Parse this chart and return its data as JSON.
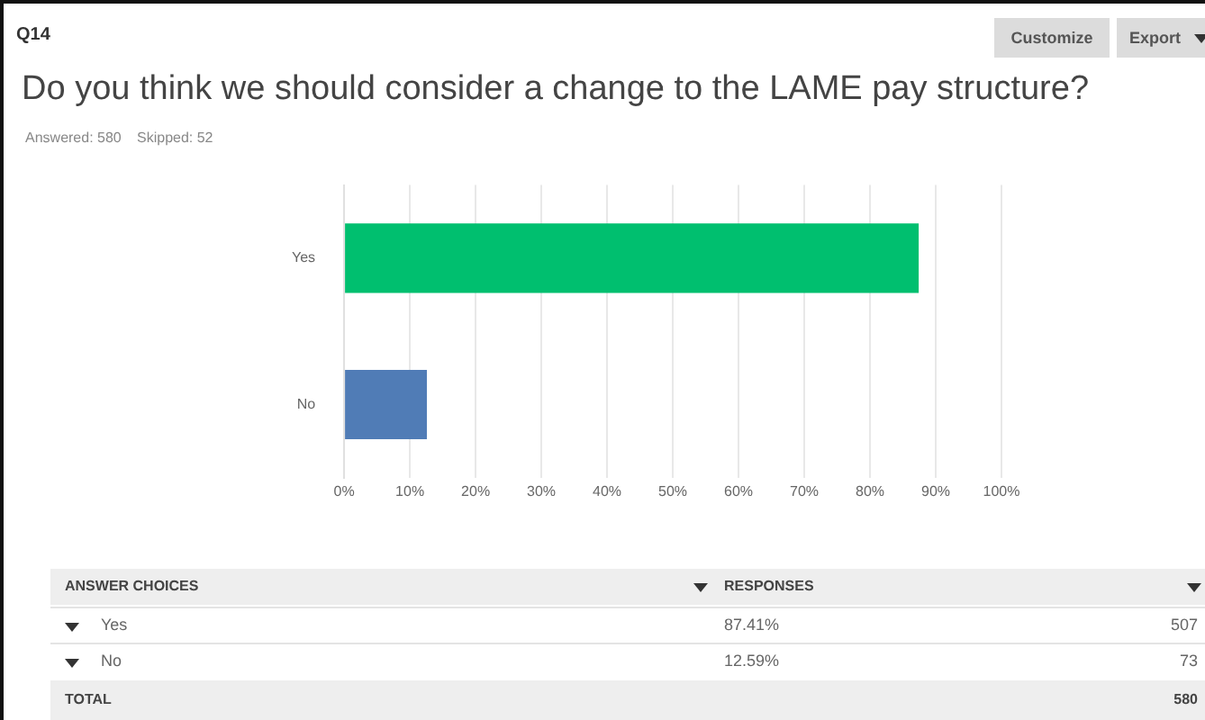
{
  "chart_data": {
    "type": "bar",
    "orientation": "horizontal",
    "title": "Do you think we should consider a change to the LAME pay structure?",
    "categories": [
      "Yes",
      "No"
    ],
    "values": [
      87.41,
      12.59
    ],
    "colors": [
      "#00bf6f",
      "#507cb6"
    ],
    "xlim": [
      0,
      100
    ],
    "xticks": [
      {
        "value": 0,
        "label": "0%"
      },
      {
        "value": 10,
        "label": "10%"
      },
      {
        "value": 20,
        "label": "20%"
      },
      {
        "value": 30,
        "label": "30%"
      },
      {
        "value": 40,
        "label": "40%"
      },
      {
        "value": 50,
        "label": "50%"
      },
      {
        "value": 60,
        "label": "60%"
      },
      {
        "value": 70,
        "label": "70%"
      },
      {
        "value": 80,
        "label": "80%"
      },
      {
        "value": 90,
        "label": "90%"
      },
      {
        "value": 100,
        "label": "100%"
      }
    ],
    "grid": "x",
    "legend": false,
    "annotations": [
      "Q14",
      "Answered: 580",
      "Skipped: 52",
      "Customize",
      "Export",
      "ANSWER CHOICES",
      "RESPONSES",
      "507",
      "73",
      "TOTAL",
      "580",
      "87.41%",
      "12.59%"
    ]
  }
}
